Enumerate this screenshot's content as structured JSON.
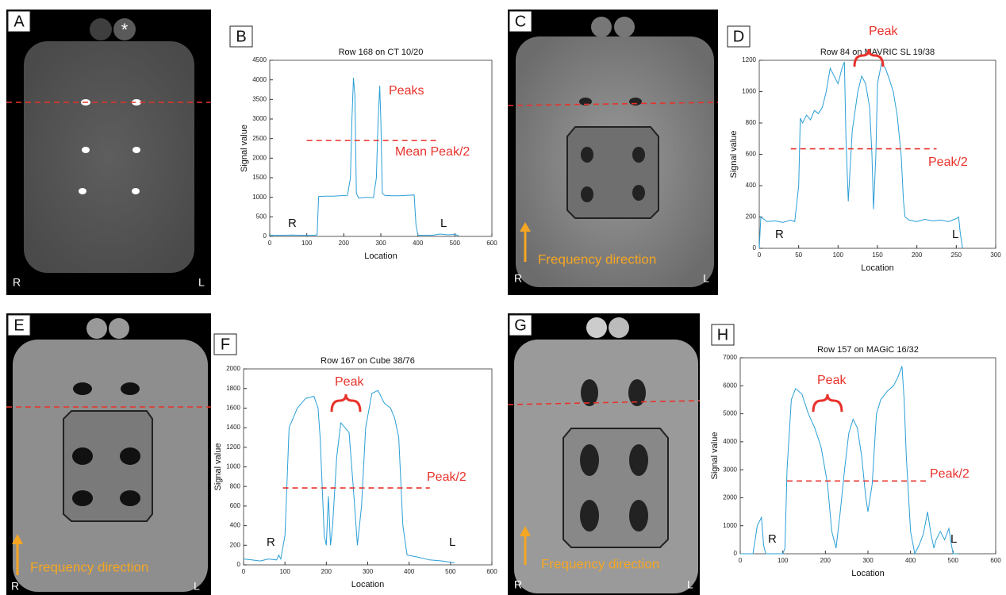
{
  "chart_data": [
    {
      "type": "line",
      "label": "B",
      "title": "Row 168 on CT 10/20",
      "xlabel": "Location",
      "ylabel": "Signal value",
      "xlim": [
        0,
        600
      ],
      "xticks": [
        0,
        100,
        200,
        300,
        400,
        500,
        600
      ],
      "ylim": [
        0,
        4500
      ],
      "yticks": [
        0,
        500,
        1000,
        1500,
        2000,
        2500,
        3000,
        3500,
        4000,
        4500
      ],
      "series": [
        {
          "color": "#2a9fd6",
          "x": [
            0,
            20,
            40,
            60,
            80,
            100,
            120,
            128,
            132,
            150,
            170,
            190,
            210,
            218,
            222,
            226,
            230,
            234,
            240,
            260,
            280,
            288,
            292,
            297,
            300,
            304,
            310,
            330,
            350,
            370,
            390,
            395,
            400,
            420,
            440,
            460,
            480,
            500,
            510
          ],
          "values": [
            30,
            30,
            30,
            35,
            30,
            30,
            30,
            40,
            1020,
            1030,
            1030,
            1040,
            1050,
            1500,
            3000,
            4050,
            3600,
            1100,
            980,
            1000,
            990,
            1500,
            2800,
            3850,
            3000,
            1100,
            1050,
            1040,
            1040,
            1050,
            1060,
            300,
            30,
            30,
            30,
            60,
            40,
            50,
            20
          ]
        }
      ],
      "threshold": {
        "y": 2450,
        "x": [
          100,
          460
        ],
        "color": "#e8322b"
      },
      "annotations": [
        "Peaks",
        "Mean Peak/2"
      ],
      "side_labels": [
        "R",
        "L"
      ]
    },
    {
      "type": "line",
      "label": "D",
      "title": "Row 84 on MAVRIC SL 19/38",
      "xlabel": "Location",
      "ylabel": "Signal value",
      "xlim": [
        0,
        300
      ],
      "xticks": [
        0,
        50,
        100,
        150,
        200,
        250,
        300
      ],
      "ylim": [
        0,
        1200
      ],
      "yticks": [
        0,
        200,
        400,
        600,
        800,
        1000,
        1200
      ],
      "series": [
        {
          "color": "#2a9fd6",
          "x": [
            0,
            2,
            10,
            20,
            30,
            40,
            45,
            50,
            52,
            55,
            60,
            65,
            70,
            75,
            80,
            85,
            90,
            95,
            100,
            105,
            108,
            110,
            113,
            118,
            125,
            130,
            135,
            140,
            143,
            145,
            148,
            150,
            155,
            160,
            165,
            170,
            175,
            180,
            183,
            185,
            190,
            200,
            210,
            220,
            230,
            240,
            250,
            253,
            255,
            258
          ],
          "values": [
            0,
            200,
            170,
            175,
            165,
            180,
            170,
            400,
            830,
            800,
            850,
            820,
            880,
            860,
            900,
            1000,
            1150,
            1100,
            1050,
            1150,
            1190,
            700,
            300,
            750,
            1000,
            1100,
            1050,
            900,
            600,
            250,
            600,
            1050,
            1180,
            1150,
            1080,
            1000,
            850,
            600,
            300,
            200,
            180,
            170,
            185,
            175,
            180,
            170,
            190,
            200,
            100,
            0
          ]
        }
      ],
      "threshold": {
        "y": 635,
        "x": [
          40,
          225
        ],
        "color": "#e8322b"
      },
      "annotations": [
        "Peak",
        "Peak/2"
      ],
      "side_labels": [
        "R",
        "L"
      ]
    },
    {
      "type": "line",
      "label": "F",
      "title": "Row 167 on Cube 38/76",
      "xlabel": "Location",
      "ylabel": "Signal value",
      "xlim": [
        0,
        600
      ],
      "xticks": [
        0,
        100,
        200,
        300,
        400,
        500,
        600
      ],
      "ylim": [
        0,
        2000
      ],
      "yticks": [
        0,
        200,
        400,
        600,
        800,
        1000,
        1200,
        1400,
        1600,
        1800,
        2000
      ],
      "series": [
        {
          "color": "#2a9fd6",
          "x": [
            0,
            20,
            40,
            60,
            80,
            85,
            90,
            100,
            110,
            130,
            150,
            170,
            180,
            185,
            190,
            195,
            200,
            205,
            210,
            215,
            225,
            235,
            245,
            255,
            265,
            275,
            285,
            295,
            310,
            325,
            340,
            355,
            365,
            375,
            385,
            395,
            420,
            450,
            480,
            510
          ],
          "values": [
            60,
            50,
            40,
            60,
            50,
            100,
            60,
            300,
            1400,
            1600,
            1700,
            1720,
            1600,
            1300,
            800,
            300,
            200,
            700,
            200,
            400,
            1100,
            1450,
            1400,
            1350,
            800,
            200,
            600,
            1400,
            1750,
            1780,
            1650,
            1600,
            1500,
            1300,
            400,
            100,
            80,
            50,
            40,
            20
          ]
        }
      ],
      "threshold": {
        "y": 785,
        "x": [
          95,
          450
        ],
        "color": "#e8322b"
      },
      "annotations": [
        "Peak",
        "Peak/2"
      ],
      "side_labels": [
        "R",
        "L"
      ]
    },
    {
      "type": "line",
      "label": "H",
      "title": "Row 157 on MAGiC 16/32",
      "xlabel": "Location",
      "ylabel": "Signal value",
      "xlim": [
        0,
        600
      ],
      "xticks": [
        0,
        100,
        200,
        300,
        400,
        500,
        600
      ],
      "ylim": [
        0,
        7000
      ],
      "yticks": [
        0,
        1000,
        2000,
        3000,
        4000,
        5000,
        6000,
        7000
      ],
      "series": [
        {
          "color": "#2a9fd6",
          "x": [
            0,
            30,
            40,
            50,
            55,
            60,
            100,
            105,
            110,
            120,
            130,
            145,
            160,
            175,
            190,
            205,
            215,
            225,
            235,
            245,
            255,
            265,
            275,
            285,
            295,
            300,
            310,
            320,
            330,
            345,
            360,
            370,
            380,
            385,
            390,
            400,
            410,
            420,
            430,
            440,
            448,
            455,
            460,
            470,
            480,
            490,
            495,
            500,
            510
          ],
          "values": [
            0,
            0,
            1000,
            1300,
            300,
            0,
            0,
            200,
            3000,
            5500,
            5900,
            5700,
            5000,
            4500,
            3800,
            2500,
            800,
            200,
            1500,
            3000,
            4300,
            4800,
            4500,
            3500,
            2000,
            1500,
            2500,
            5000,
            5500,
            5800,
            6000,
            6300,
            6700,
            5500,
            3500,
            800,
            0,
            300,
            700,
            1500,
            700,
            200,
            500,
            800,
            500,
            900,
            400,
            0,
            0
          ]
        }
      ],
      "threshold": {
        "y": 2600,
        "x": [
          110,
          440
        ],
        "color": "#e8322b"
      },
      "annotations": [
        "Peak",
        "Peak/2"
      ],
      "side_labels": [
        "R",
        "L"
      ]
    }
  ],
  "images": [
    {
      "label": "A",
      "marker": "*",
      "left": "R",
      "right": "L"
    },
    {
      "label": "C",
      "note": "Frequency direction",
      "left": "R",
      "right": "L"
    },
    {
      "label": "E",
      "note": "Frequency direction",
      "left": "R",
      "right": "L"
    },
    {
      "label": "G",
      "note": "Frequency direction",
      "left": "R",
      "right": "L"
    }
  ]
}
